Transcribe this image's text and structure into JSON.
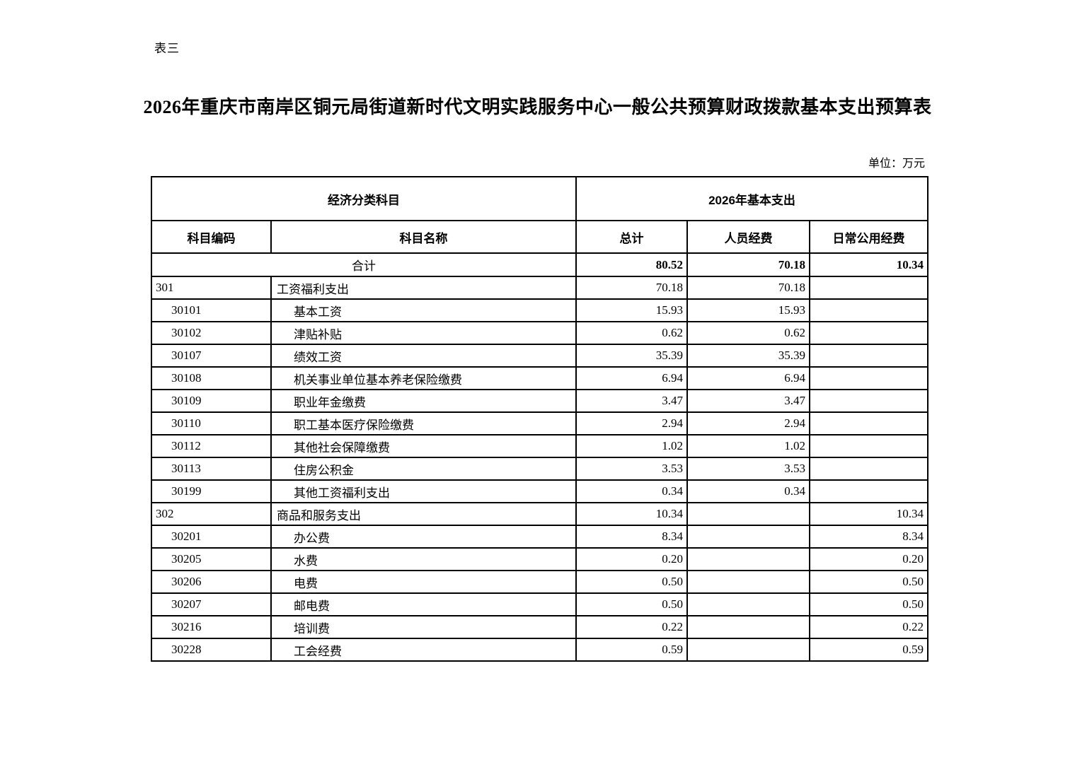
{
  "page": {
    "table_label": "表三",
    "title": "2026年重庆市南岸区铜元局街道新时代文明实践服务中心一般公共预算财政拨款基本支出预算表",
    "unit_note": "单位：万元"
  },
  "table": {
    "header": {
      "economic_category": "经济分类科目",
      "basic_expenditure_2026": "2026年基本支出",
      "columns": [
        "科目编码",
        "科目名称",
        "总计",
        "人员经费",
        "日常公用经费"
      ]
    },
    "total_row": {
      "label": "合计",
      "total": "80.52",
      "personnel": "70.18",
      "public": "10.34"
    },
    "rows": [
      {
        "code": "301",
        "name": "工资福利支出",
        "level": 1,
        "total": "70.18",
        "personnel": "70.18",
        "public": ""
      },
      {
        "code": "30101",
        "name": "基本工资",
        "level": 2,
        "total": "15.93",
        "personnel": "15.93",
        "public": ""
      },
      {
        "code": "30102",
        "name": "津贴补贴",
        "level": 2,
        "total": "0.62",
        "personnel": "0.62",
        "public": ""
      },
      {
        "code": "30107",
        "name": "绩效工资",
        "level": 2,
        "total": "35.39",
        "personnel": "35.39",
        "public": ""
      },
      {
        "code": "30108",
        "name": "机关事业单位基本养老保险缴费",
        "level": 2,
        "total": "6.94",
        "personnel": "6.94",
        "public": ""
      },
      {
        "code": "30109",
        "name": "职业年金缴费",
        "level": 2,
        "total": "3.47",
        "personnel": "3.47",
        "public": ""
      },
      {
        "code": "30110",
        "name": "职工基本医疗保险缴费",
        "level": 2,
        "total": "2.94",
        "personnel": "2.94",
        "public": ""
      },
      {
        "code": "30112",
        "name": "其他社会保障缴费",
        "level": 2,
        "total": "1.02",
        "personnel": "1.02",
        "public": ""
      },
      {
        "code": "30113",
        "name": "住房公积金",
        "level": 2,
        "total": "3.53",
        "personnel": "3.53",
        "public": ""
      },
      {
        "code": "30199",
        "name": "其他工资福利支出",
        "level": 2,
        "total": "0.34",
        "personnel": "0.34",
        "public": ""
      },
      {
        "code": "302",
        "name": "商品和服务支出",
        "level": 1,
        "total": "10.34",
        "personnel": "",
        "public": "10.34"
      },
      {
        "code": "30201",
        "name": "办公费",
        "level": 2,
        "total": "8.34",
        "personnel": "",
        "public": "8.34"
      },
      {
        "code": "30205",
        "name": "水费",
        "level": 2,
        "total": "0.20",
        "personnel": "",
        "public": "0.20"
      },
      {
        "code": "30206",
        "name": "电费",
        "level": 2,
        "total": "0.50",
        "personnel": "",
        "public": "0.50"
      },
      {
        "code": "30207",
        "name": "邮电费",
        "level": 2,
        "total": "0.50",
        "personnel": "",
        "public": "0.50"
      },
      {
        "code": "30216",
        "name": "培训费",
        "level": 2,
        "total": "0.22",
        "personnel": "",
        "public": "0.22"
      },
      {
        "code": "30228",
        "name": "工会经费",
        "level": 2,
        "total": "0.59",
        "personnel": "",
        "public": "0.59"
      }
    ]
  }
}
